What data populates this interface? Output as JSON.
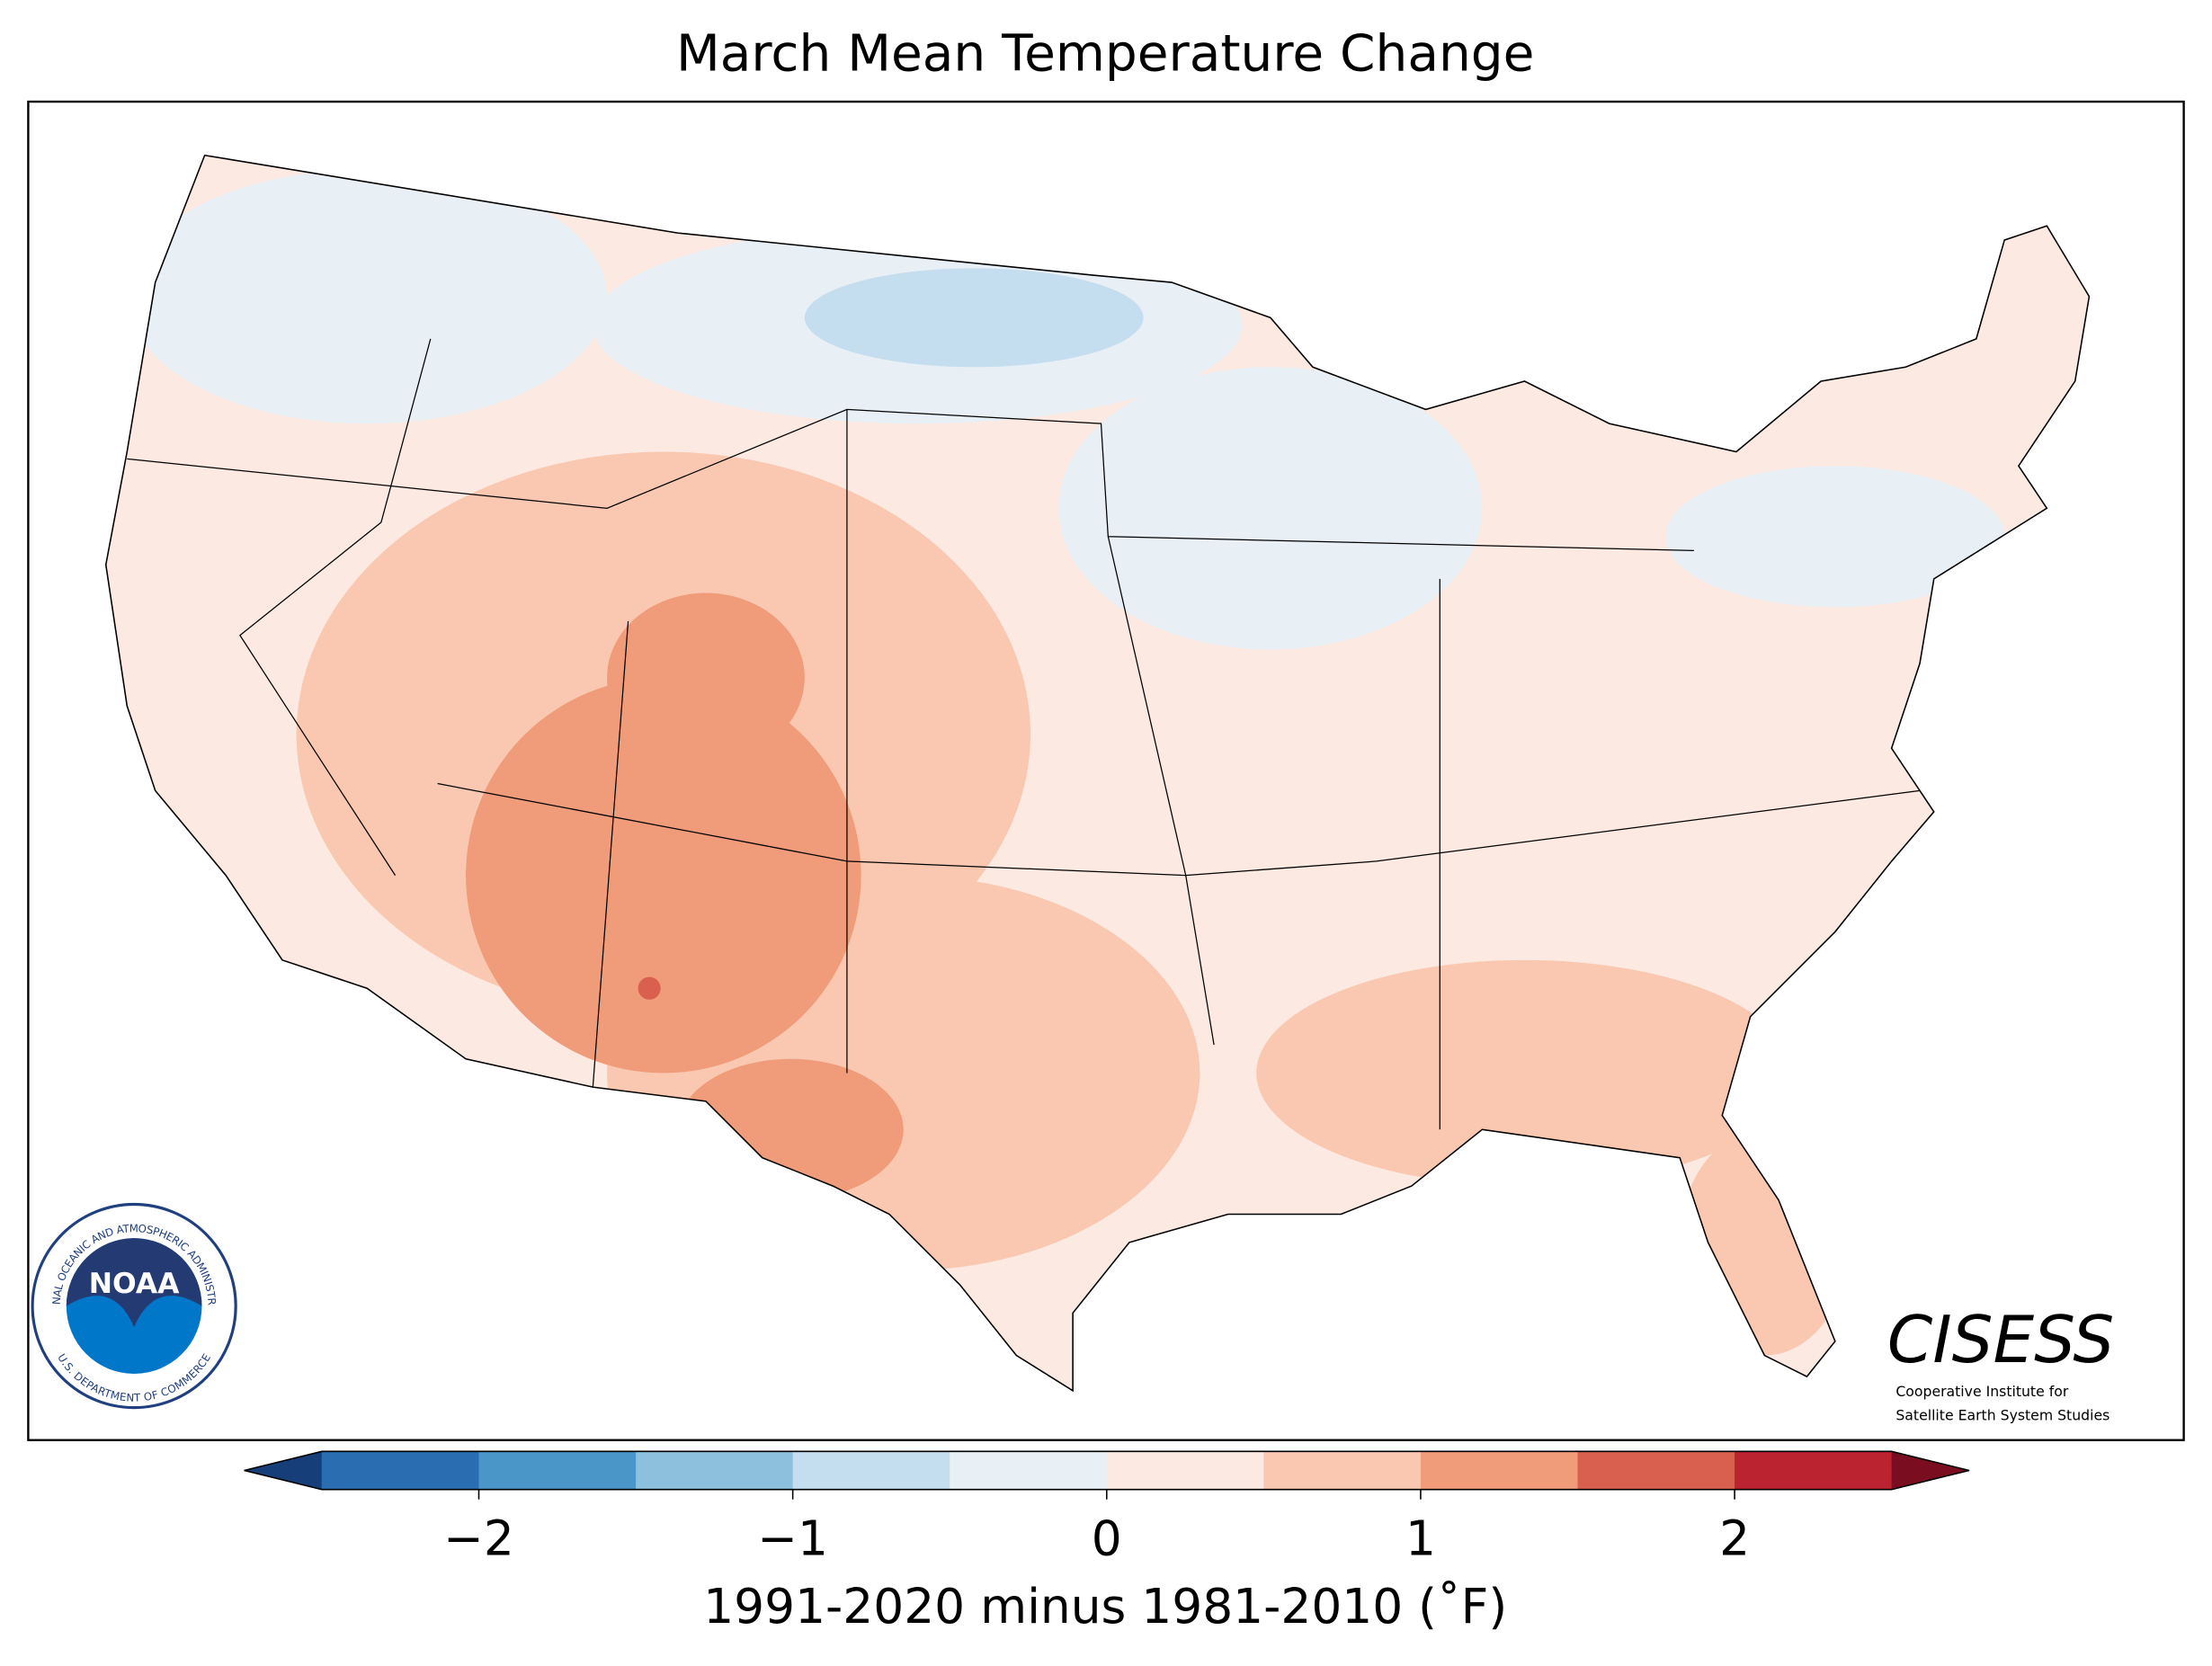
{
  "chart_data": {
    "type": "colorbar-map",
    "title": "March Mean Temperature Change",
    "colorbar": {
      "clim": [
        -2.5,
        2.5
      ],
      "colors": [
        "#2b6db1",
        "#4a96c8",
        "#8cc0dd",
        "#c4def0",
        "#e8f0f5",
        "#fbe9e2",
        "#fac8b1",
        "#f09b7a",
        "#d9604e",
        "#bb2331"
      ],
      "extend_colors": [
        "#163f7a",
        "#7a0d1f"
      ],
      "ticks": [
        {
          "value": -2,
          "label": "−2"
        },
        {
          "value": -1,
          "label": "−1"
        },
        0,
        1,
        2
      ],
      "label": "1991-2020 minus 1981-2010 (˚F)"
    },
    "logos": {
      "noaa": {
        "name": "NOAA",
        "ring_top": "NATIONAL OCEANIC AND ATMOSPHERIC ADMINISTRATION",
        "ring_bottom": "U.S. DEPARTMENT OF COMMERCE"
      },
      "cisess": {
        "name": "CISESS",
        "line1": "Cooperative Institute for",
        "line2": "Satellite Earth System Studies"
      }
    }
  }
}
